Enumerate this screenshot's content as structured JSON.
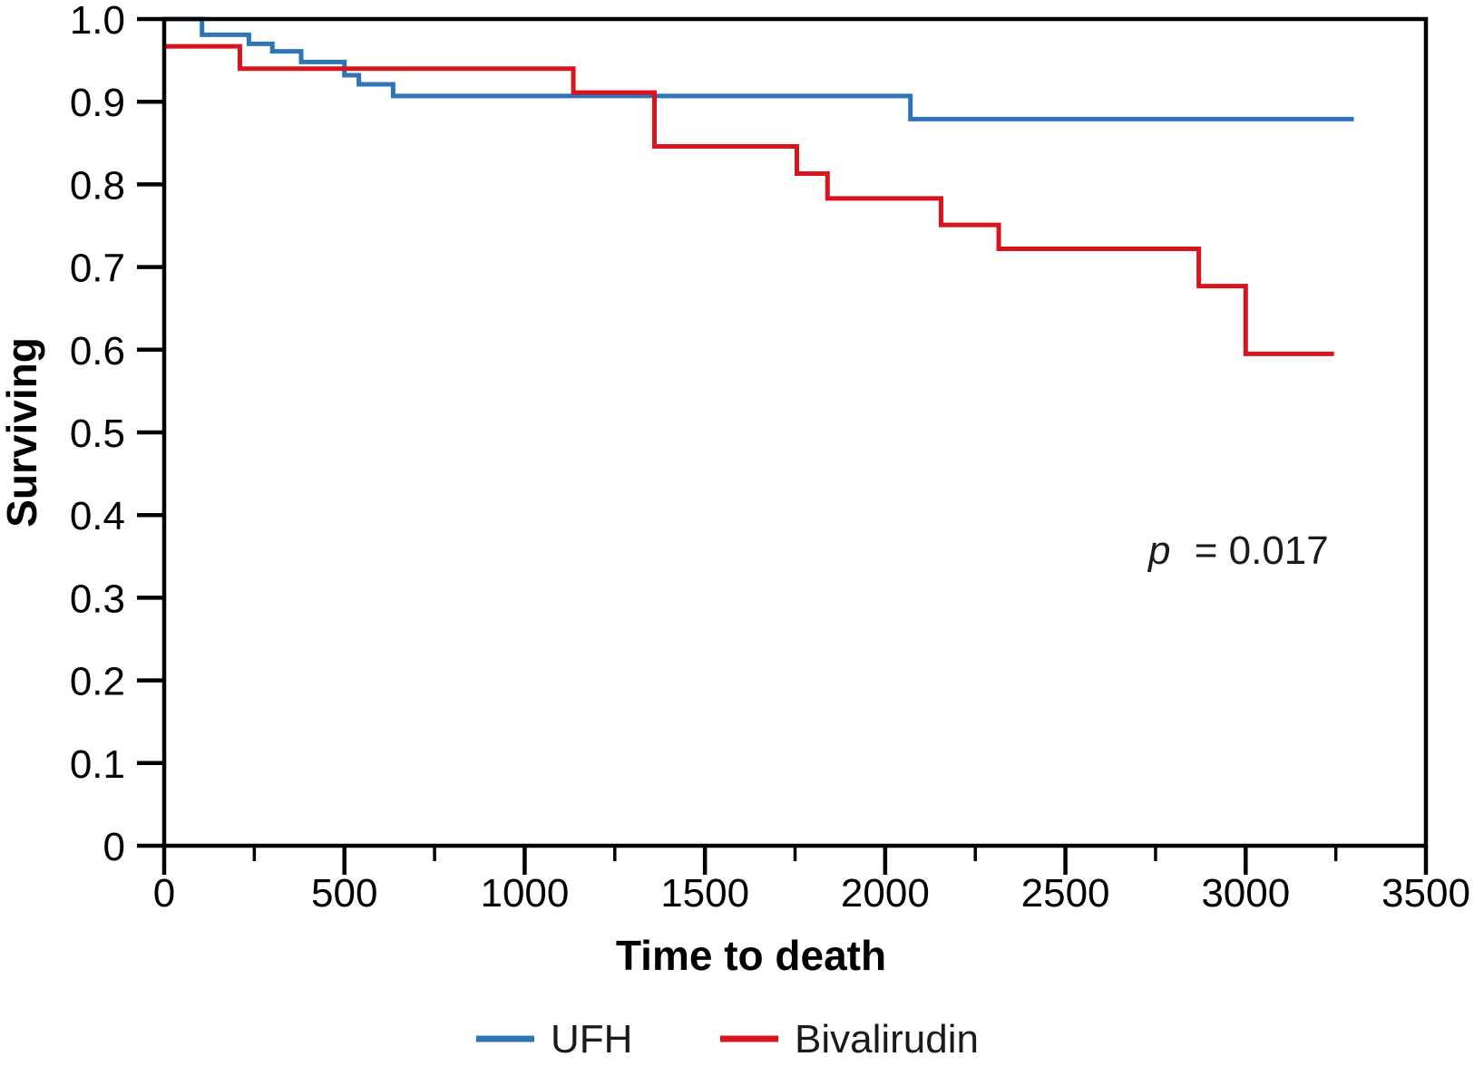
{
  "chart_data": {
    "type": "line",
    "subtype": "kaplan-meier-step-survival",
    "title": "",
    "xlabel": "Time to death",
    "ylabel": "Surviving",
    "xlim": [
      0,
      3500
    ],
    "ylim": [
      0,
      1.0
    ],
    "grid": false,
    "legend_position": "bottom-center",
    "annotation": {
      "italic_part": "p",
      "rest_part": "= 0.017",
      "approx_x": 2940,
      "approx_y": 0.34
    },
    "x_major_ticks": [
      {
        "v": 0,
        "label": "0"
      },
      {
        "v": 500,
        "label": "500"
      },
      {
        "v": 1000,
        "label": "1000"
      },
      {
        "v": 1500,
        "label": "1500"
      },
      {
        "v": 2000,
        "label": "2000"
      },
      {
        "v": 2500,
        "label": "2500"
      },
      {
        "v": 3000,
        "label": "3000"
      },
      {
        "v": 3500,
        "label": "3500"
      }
    ],
    "x_minor_ticks": [
      250,
      750,
      1250,
      1750,
      2250,
      2750,
      3250
    ],
    "y_ticks": [
      {
        "v": 1.0,
        "label": "1.0"
      },
      {
        "v": 0.9,
        "label": "0.9"
      },
      {
        "v": 0.8,
        "label": "0.8"
      },
      {
        "v": 0.7,
        "label": "0.7"
      },
      {
        "v": 0.6,
        "label": "0.6"
      },
      {
        "v": 0.5,
        "label": "0.5"
      },
      {
        "v": 0.4,
        "label": "0.4"
      },
      {
        "v": 0.3,
        "label": "0.3"
      },
      {
        "v": 0.2,
        "label": "0.2"
      },
      {
        "v": 0.1,
        "label": "0.1"
      },
      {
        "v": 0,
        "label": "0"
      }
    ],
    "series": [
      {
        "name": "UFH",
        "color": "#2E75B6",
        "start": [
          0,
          1.0
        ],
        "steps": [
          [
            105,
            0.981
          ],
          [
            235,
            0.97
          ],
          [
            300,
            0.961
          ],
          [
            380,
            0.948
          ],
          [
            500,
            0.932
          ],
          [
            540,
            0.921
          ],
          [
            635,
            0.907
          ],
          [
            2070,
            0.879
          ]
        ],
        "end_x": 3300
      },
      {
        "name": "Bivalirudin",
        "color": "#D8141F",
        "start": [
          0,
          0.967
        ],
        "steps": [
          [
            210,
            0.94
          ],
          [
            1135,
            0.911
          ],
          [
            1360,
            0.846
          ],
          [
            1755,
            0.813
          ],
          [
            1840,
            0.783
          ],
          [
            2155,
            0.751
          ],
          [
            2315,
            0.722
          ],
          [
            2870,
            0.677
          ],
          [
            3000,
            0.595
          ]
        ],
        "end_x": 3245
      }
    ]
  }
}
